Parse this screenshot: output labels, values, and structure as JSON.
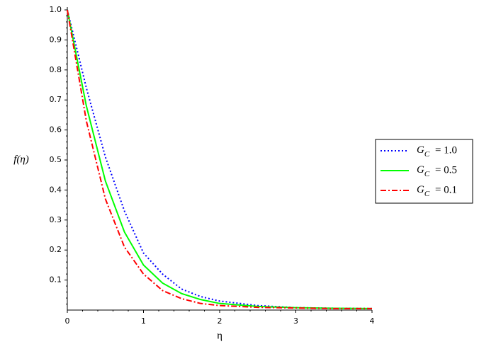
{
  "chart_data": {
    "type": "line",
    "x_label": "η",
    "y_label": "f(η)",
    "x": [
      0,
      0.25,
      0.5,
      0.75,
      1,
      1.25,
      1.5,
      1.75,
      2,
      2.5,
      3,
      3.5,
      4
    ],
    "series": [
      {
        "name": "= 1.0",
        "color": "#0000ff",
        "dash": "2,3",
        "values": [
          1,
          0.74,
          0.51,
          0.33,
          0.19,
          0.12,
          0.07,
          0.045,
          0.03,
          0.015,
          0.008,
          0.006,
          0.005
        ]
      },
      {
        "name": "= 0.5",
        "color": "#00ff00",
        "dash": "none",
        "values": [
          1,
          0.68,
          0.43,
          0.26,
          0.15,
          0.09,
          0.055,
          0.035,
          0.022,
          0.012,
          0.008,
          0.006,
          0.005
        ]
      },
      {
        "name": "= 0.1",
        "color": "#ff0000",
        "dash": "8,3,2,3",
        "values": [
          1,
          0.63,
          0.37,
          0.21,
          0.12,
          0.065,
          0.038,
          0.022,
          0.015,
          0.009,
          0.007,
          0.005,
          0.005
        ]
      }
    ],
    "legend_label": {
      "base": "G",
      "sub": "C"
    },
    "xlim": [
      0,
      4
    ],
    "ylim": [
      0,
      1
    ],
    "xticks": [
      0,
      1,
      2,
      3,
      4
    ],
    "yticks": [
      0.1,
      0.2,
      0.3,
      0.4,
      0.5,
      0.6,
      0.7,
      0.8,
      0.9,
      {
        "value": 1,
        "label": "1.0"
      }
    ],
    "grid": false,
    "legend_position": "right"
  }
}
